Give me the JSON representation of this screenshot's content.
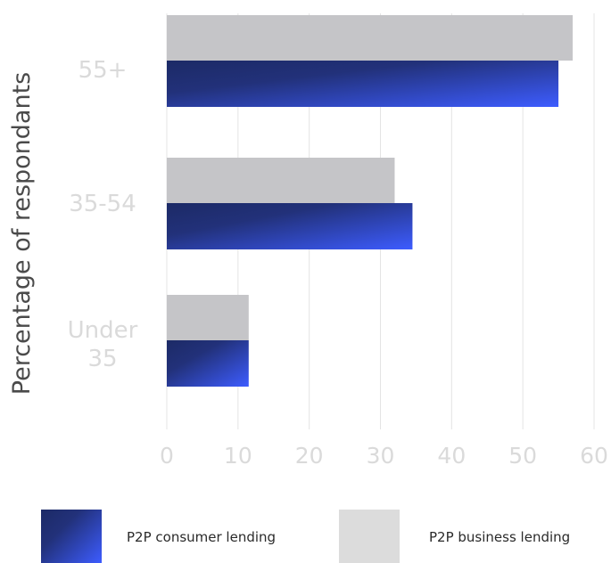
{
  "chart_data": {
    "type": "bar",
    "orientation": "horizontal",
    "ylabel": "Percentage of respondants",
    "xlabel": "",
    "categories": [
      "55+",
      "35-54",
      "Under 35"
    ],
    "category_lines": [
      [
        "55+"
      ],
      [
        "35-54"
      ],
      [
        "Under",
        "35"
      ]
    ],
    "series": [
      {
        "name": "P2P business lending",
        "values": [
          57,
          32,
          11.5
        ],
        "color": "#c5c5c8"
      },
      {
        "name": "P2P consumer lending",
        "values": [
          55,
          34.5,
          11.5
        ],
        "color_start": "#1c2a66",
        "color_end": "#3d5cff"
      }
    ],
    "xlim": [
      0,
      60
    ],
    "xticks": [
      "0",
      "10",
      "20",
      "30",
      "40",
      "50",
      "60"
    ],
    "grid": true,
    "legend_placement": "bottom"
  },
  "legend": {
    "consumer_label": "P2P consumer lending",
    "business_label": "P2P business lending",
    "business_swatch_color": "#dcdcdc"
  }
}
